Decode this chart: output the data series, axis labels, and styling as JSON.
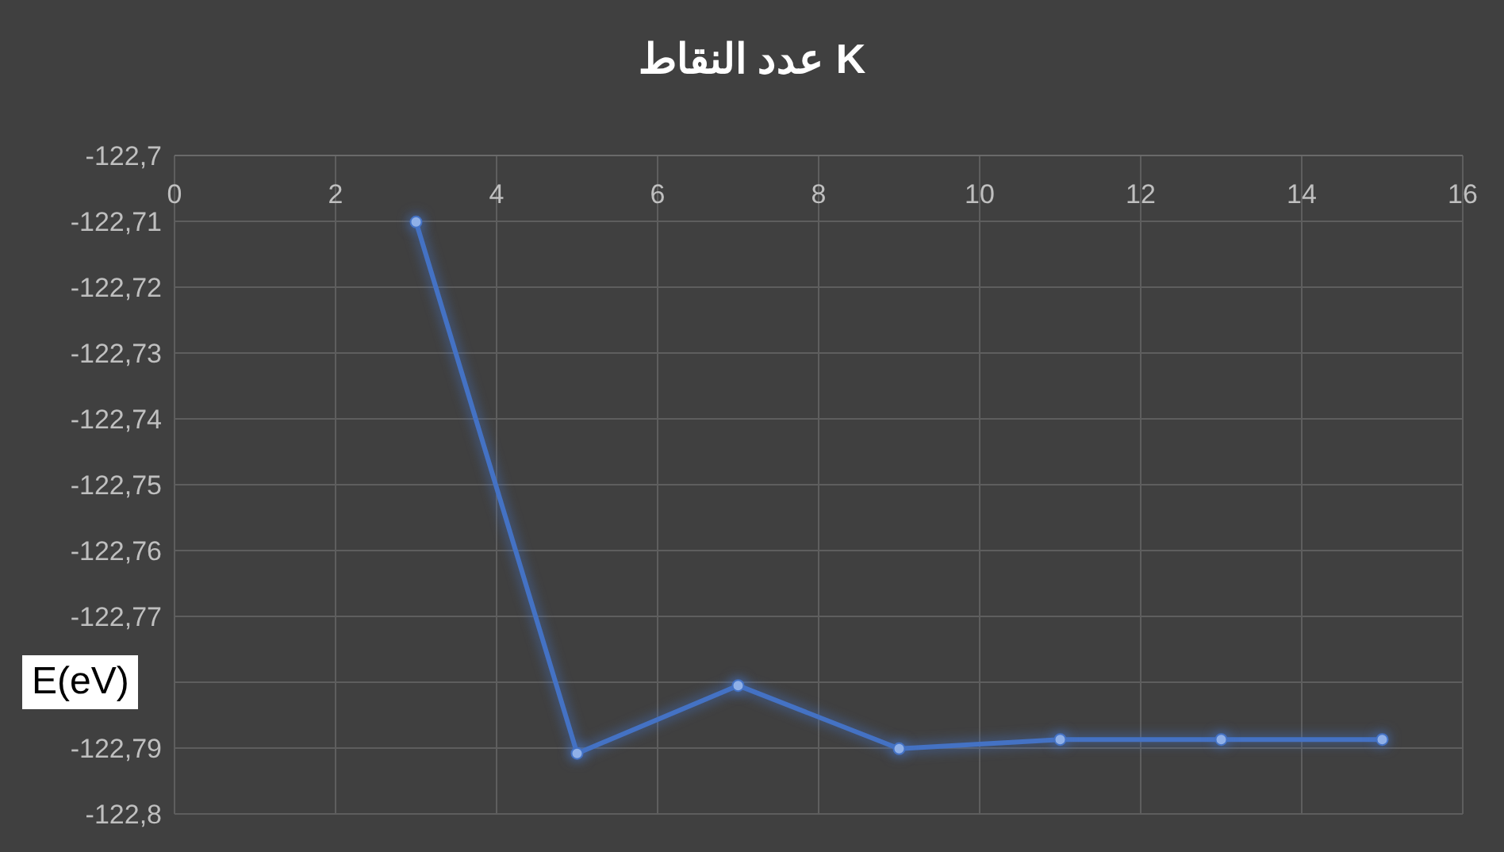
{
  "chart_data": {
    "type": "line",
    "title": "عدد النقاط K",
    "ylabel": "E(eV)",
    "x": [
      3,
      5,
      7,
      9,
      11,
      13,
      15
    ],
    "series": [
      {
        "color": "#4472c4",
        "values": [
          -122.7101,
          -122.7908,
          -122.7805,
          -122.7901,
          -122.7887,
          -122.7887,
          -122.7887
        ]
      }
    ],
    "xlim": [
      0,
      16
    ],
    "xticks": [
      0,
      2,
      4,
      6,
      8,
      10,
      12,
      14,
      16
    ],
    "ylim": [
      -122.8,
      -122.7
    ],
    "yticks": [
      {
        "value": -122.8,
        "label": "-122,8"
      },
      {
        "value": -122.79,
        "label": "-122,79"
      },
      {
        "value": -122.78,
        "label": null
      },
      {
        "value": -122.77,
        "label": "-122,77"
      },
      {
        "value": -122.76,
        "label": "-122,76"
      },
      {
        "value": -122.75,
        "label": "-122,75"
      },
      {
        "value": -122.74,
        "label": "-122,74"
      },
      {
        "value": -122.73,
        "label": "-122,73"
      },
      {
        "value": -122.72,
        "label": "-122,72"
      },
      {
        "value": -122.71,
        "label": "-122,71"
      },
      {
        "value": -122.7,
        "label": "-122,7"
      }
    ],
    "grid": true,
    "marker": "circle",
    "line_style": "solid"
  }
}
